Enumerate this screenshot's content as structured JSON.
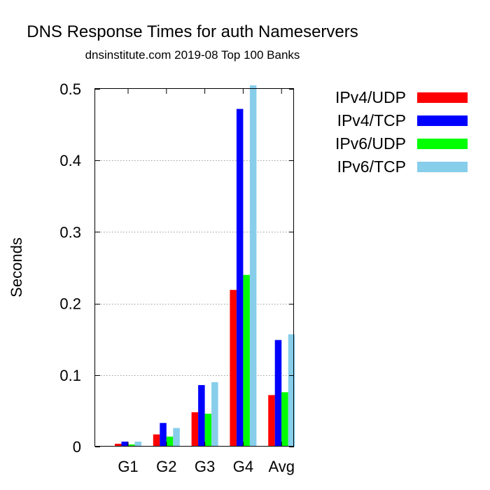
{
  "chart_data": {
    "type": "bar",
    "title": "DNS Response Times for auth Nameservers",
    "subtitle": "dnsinstitute.com 2019-08 Top 100 Banks",
    "xlabel": "",
    "ylabel": "Seconds",
    "ylim": [
      0,
      0.5
    ],
    "yticks": [
      "0",
      "0.1",
      "0.2",
      "0.3",
      "0.4",
      "0.5"
    ],
    "categories": [
      "G1",
      "G2",
      "G3",
      "G4",
      "Avg"
    ],
    "grid": true,
    "legend_position": "right",
    "series": [
      {
        "name": "IPv4/UDP",
        "color": "#ff0000",
        "values": [
          0.004,
          0.017,
          0.048,
          0.219,
          0.072
        ]
      },
      {
        "name": "IPv4/TCP",
        "color": "#0000ff",
        "values": [
          0.007,
          0.033,
          0.086,
          0.472,
          0.149
        ]
      },
      {
        "name": "IPv6/UDP",
        "color": "#00ff00",
        "values": [
          0.003,
          0.014,
          0.046,
          0.24,
          0.076
        ]
      },
      {
        "name": "IPv6/TCP",
        "color": "#87ceeb",
        "values": [
          0.007,
          0.026,
          0.09,
          0.505,
          0.157
        ]
      }
    ]
  }
}
